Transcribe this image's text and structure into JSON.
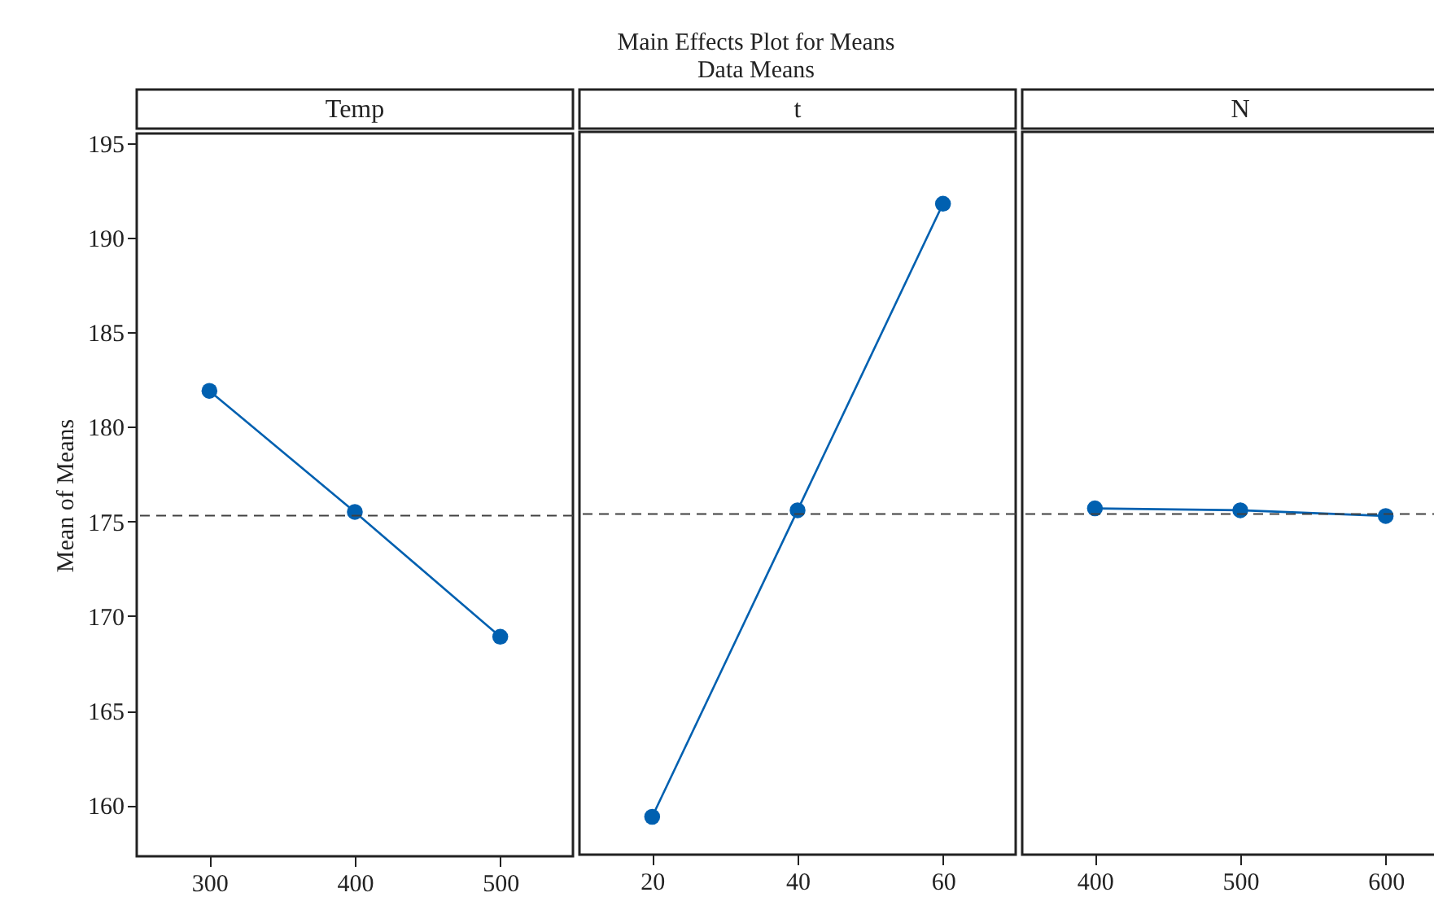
{
  "chart_data": [
    {
      "type": "line",
      "ylabel": "Mean of Means",
      "xlabel": "Temp",
      "marker": "circle",
      "x": [
        300,
        400,
        500
      ],
      "series": [
        {
          "color": "#0060b0",
          "values": [
            181.9,
            175.5,
            168.9
          ]
        }
      ],
      "xlim": [
        250,
        550
      ],
      "xticks": [
        300,
        400,
        500
      ],
      "ylim": [
        157.3,
        195.5
      ],
      "yticks": [
        160,
        165,
        170,
        175,
        180,
        185,
        190,
        195
      ],
      "ref_lines": [
        {
          "axis": "y",
          "value": 175.3,
          "color": "#404040",
          "line_style": "dashed"
        }
      ]
    },
    {
      "type": "line",
      "title": "Main Effects Plot for Means",
      "subtitle": "Data Means",
      "xlabel": "t",
      "marker": "circle",
      "x": [
        20,
        40,
        60
      ],
      "series": [
        {
          "color": "#0060b0",
          "values": [
            159.3,
            175.5,
            191.7
          ]
        }
      ],
      "xlim": [
        10,
        70
      ],
      "xticks": [
        20,
        40,
        60
      ],
      "ylim": [
        157.3,
        195.5
      ],
      "yticks": [
        160,
        165,
        170,
        175,
        180,
        185,
        190,
        195
      ],
      "tick_labels": "x",
      "ref_lines": [
        {
          "axis": "y",
          "value": 175.3,
          "color": "#404040",
          "line_style": "dashed"
        }
      ]
    },
    {
      "type": "line",
      "xlabel": "N",
      "marker": "circle",
      "x": [
        400,
        500,
        600
      ],
      "series": [
        {
          "color": "#0060b0",
          "values": [
            175.6,
            175.5,
            175.2
          ]
        }
      ],
      "xlim": [
        350,
        650
      ],
      "xticks": [
        400,
        500,
        600
      ],
      "ylim": [
        157.3,
        195.5
      ],
      "yticks": [
        160,
        165,
        170,
        175,
        180,
        185,
        190,
        195
      ],
      "tick_labels": "x",
      "ref_lines": [
        {
          "axis": "y",
          "value": 175.3,
          "color": "#404040",
          "line_style": "dashed"
        }
      ]
    }
  ]
}
